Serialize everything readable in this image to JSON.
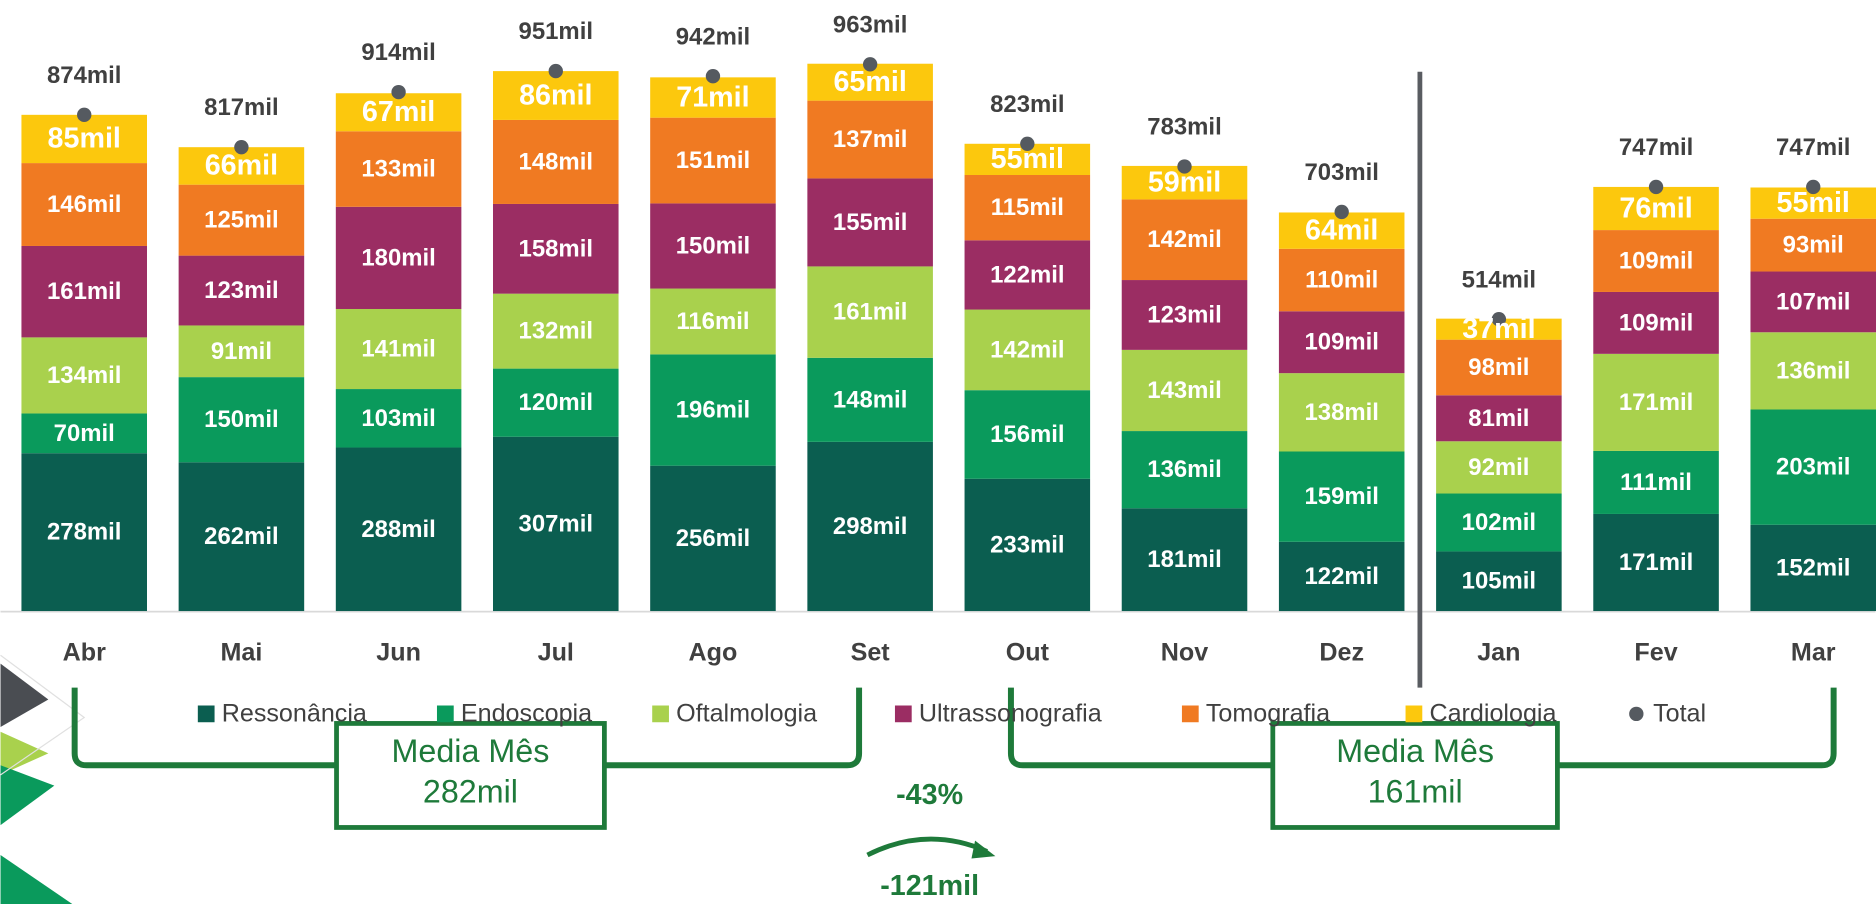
{
  "chart_data": {
    "type": "bar",
    "stacked": true,
    "categories": [
      "Abr",
      "Mai",
      "Jun",
      "Jul",
      "Ago",
      "Set",
      "Out",
      "Nov",
      "Dez",
      "Jan",
      "Fev",
      "Mar"
    ],
    "series": [
      {
        "name": "Ressonância",
        "color": "#0b5e50",
        "values": [
          278,
          262,
          288,
          307,
          256,
          298,
          233,
          181,
          122,
          105,
          171,
          152
        ],
        "value_labels": [
          "278mil",
          "262mil",
          "288mil",
          "307mil",
          "256mil",
          "298mil",
          "233mil",
          "181mil",
          "122mil",
          "105mil",
          "171mil",
          "152mil"
        ]
      },
      {
        "name": "Endoscopia",
        "color": "#0a9a5c",
        "values": [
          70,
          150,
          103,
          120,
          196,
          148,
          156,
          136,
          159,
          102,
          111,
          203
        ],
        "value_labels": [
          "70mil",
          "150mil",
          "103mil",
          "120mil",
          "196mil",
          "148mil",
          "156mil",
          "136mil",
          "159mil",
          "102mil",
          "111mil",
          "203mil"
        ]
      },
      {
        "name": "Oftalmologia",
        "color": "#a9d14d",
        "values": [
          134,
          91,
          141,
          132,
          116,
          161,
          142,
          143,
          138,
          92,
          171,
          136
        ],
        "value_labels": [
          "134mil",
          "91mil",
          "141mil",
          "132mil",
          "116mil",
          "161mil",
          "142mil",
          "143mil",
          "138mil",
          "92mil",
          "171mil",
          "136mil"
        ]
      },
      {
        "name": "Ultrassonografia",
        "color": "#9b2d63",
        "values": [
          161,
          123,
          180,
          158,
          150,
          155,
          122,
          123,
          109,
          81,
          109,
          107
        ],
        "value_labels": [
          "161mil",
          "123mil",
          "180mil",
          "158mil",
          "150mil",
          "155mil",
          "122mil",
          "123mil",
          "109mil",
          "81mil",
          "109mil",
          "107mil"
        ]
      },
      {
        "name": "Tomografia",
        "color": "#f07a22",
        "values": [
          146,
          125,
          133,
          148,
          151,
          137,
          115,
          142,
          110,
          98,
          109,
          93
        ],
        "value_labels": [
          "146mil",
          "125mil",
          "133mil",
          "148mil",
          "151mil",
          "137mil",
          "115mil",
          "142mil",
          "110mil",
          "98mil",
          "109mil",
          "93mil"
        ]
      },
      {
        "name": "Cardiologia",
        "color": "#fcc80d",
        "values": [
          85,
          66,
          67,
          86,
          71,
          65,
          55,
          59,
          64,
          37,
          76,
          55
        ],
        "value_labels": [
          "85mil",
          "66mil",
          "67mil",
          "86mil",
          "71mil",
          "65mil",
          "55mil",
          "59mil",
          "64mil",
          "37mil",
          "76mil",
          "55mil"
        ]
      },
      {
        "name": "Total",
        "color": "#555a60",
        "marker": "circle",
        "values": [
          874,
          817,
          914,
          951,
          942,
          963,
          823,
          783,
          703,
          514,
          747,
          747
        ],
        "value_labels": [
          "874mil",
          "817mil",
          "914mil",
          "951mil",
          "942mil",
          "963mil",
          "823mil",
          "783mil",
          "703mil",
          "514mil",
          "747mil",
          "747mil"
        ]
      }
    ],
    "annotations": [
      {
        "title": "Media Mês",
        "value": "282mil"
      },
      {
        "title": "Media Mês",
        "value": "161mil"
      }
    ],
    "change_percent": "-43%",
    "change_absolute": "-121mil"
  }
}
